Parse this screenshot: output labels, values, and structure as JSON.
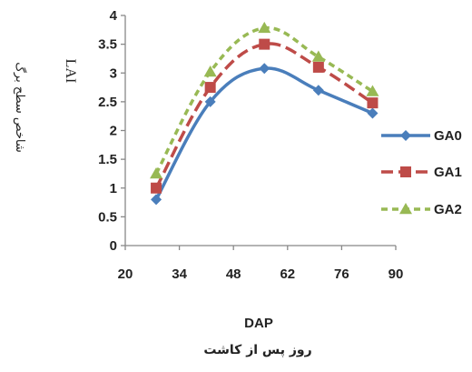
{
  "chart_data": {
    "type": "line",
    "title": "",
    "xlabel": "DAP",
    "xlabel_secondary": "روز پس از کاشت",
    "ylabel": "LAI",
    "ylabel_secondary": "شاخص سطح برگ",
    "xlim": [
      20,
      90
    ],
    "ylim": [
      0,
      4
    ],
    "x_ticks": [
      "20",
      "34",
      "48",
      "62",
      "76",
      "90"
    ],
    "y_ticks": [
      "0",
      "0.5",
      "1",
      "1.5",
      "2",
      "2.5",
      "3",
      "3.5",
      "4"
    ],
    "grid": false,
    "legend_position": "right",
    "series": [
      {
        "name": "GA0",
        "color": "#4a7ebb",
        "marker": "diamond",
        "line_style": "solid",
        "x": [
          28,
          42,
          56,
          70,
          84
        ],
        "values": [
          0.8,
          2.5,
          3.08,
          2.7,
          2.3
        ]
      },
      {
        "name": "GA1",
        "color": "#be4b48",
        "marker": "square",
        "line_style": "dashed",
        "x": [
          28,
          42,
          56,
          70,
          84
        ],
        "values": [
          1.0,
          2.75,
          3.5,
          3.1,
          2.48
        ]
      },
      {
        "name": "GA2",
        "color": "#98b954",
        "marker": "triangle",
        "line_style": "dotted",
        "x": [
          28,
          42,
          56,
          70,
          84
        ],
        "values": [
          1.25,
          3.02,
          3.78,
          3.28,
          2.68
        ]
      }
    ]
  }
}
